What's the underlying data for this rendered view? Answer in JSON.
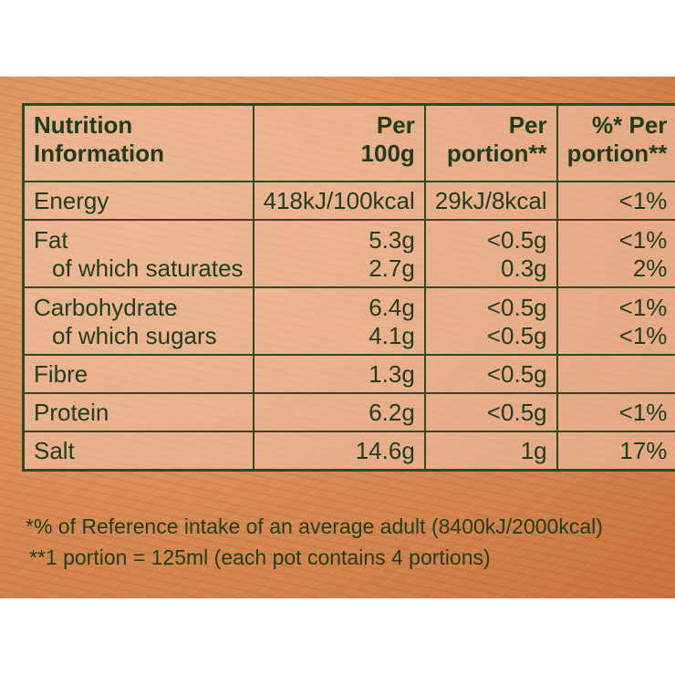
{
  "table": {
    "header": {
      "col1": [
        "Nutrition",
        "Information"
      ],
      "col2": [
        "Per",
        "100g"
      ],
      "col3": [
        "Per",
        "portion**"
      ],
      "col4": [
        "%* Per",
        "portion**"
      ]
    },
    "rows": [
      {
        "lines": [
          {
            "label": "Energy",
            "per100g": "418kJ/100kcal",
            "perPortion": "29kJ/8kcal",
            "pctPortion": "<1%"
          }
        ]
      },
      {
        "lines": [
          {
            "label": "Fat",
            "per100g": "5.3g",
            "perPortion": "<0.5g",
            "pctPortion": "<1%"
          },
          {
            "label": "of which saturates",
            "per100g": "2.7g",
            "perPortion": "0.3g",
            "pctPortion": "2%"
          }
        ]
      },
      {
        "lines": [
          {
            "label": "Carbohydrate",
            "per100g": "6.4g",
            "perPortion": "<0.5g",
            "pctPortion": "<1%"
          },
          {
            "label": "of which sugars",
            "per100g": "4.1g",
            "perPortion": "<0.5g",
            "pctPortion": "<1%"
          }
        ]
      },
      {
        "lines": [
          {
            "label": "Fibre",
            "per100g": "1.3g",
            "perPortion": "<0.5g",
            "pctPortion": ""
          }
        ]
      },
      {
        "lines": [
          {
            "label": "Protein",
            "per100g": "6.2g",
            "perPortion": "<0.5g",
            "pctPortion": "<1%"
          }
        ]
      },
      {
        "lines": [
          {
            "label": "Salt",
            "per100g": "14.6g",
            "perPortion": "1g",
            "pctPortion": "17%"
          }
        ]
      }
    ]
  },
  "footnotes": [
    "*% of Reference intake of an average adult (8400kJ/2000kcal)",
    "**1 portion = 125ml (each pot contains 4 portions)"
  ]
}
